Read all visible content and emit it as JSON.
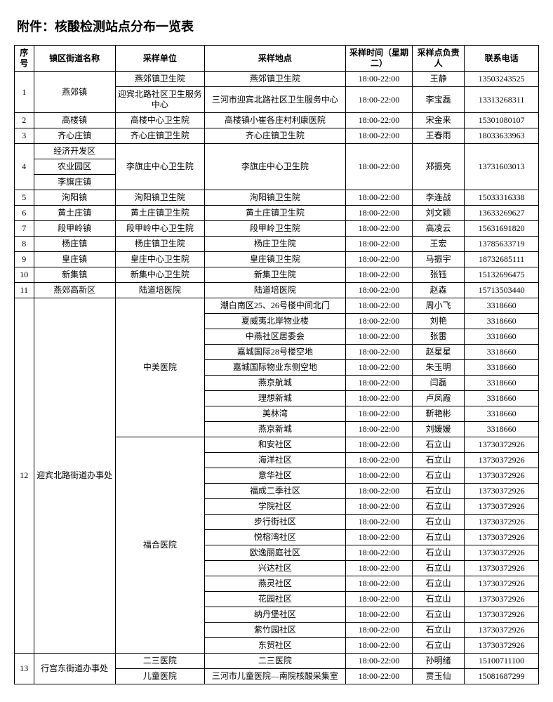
{
  "title": "附件：核酸检测站点分布一览表",
  "columns": [
    "序号",
    "镇区街道名称",
    "采样单位",
    "采样地点",
    "采样时间（星期二）",
    "采样点负责人",
    "联系电话"
  ],
  "rows": [
    {
      "seq": "1",
      "seqRow": 2,
      "town": "燕郊镇",
      "townRow": 2,
      "unit": "燕郊镇卫生院",
      "loc": "燕郊镇卫生院",
      "time": "18:00-22:00",
      "person": "王静",
      "phone": "13503243525"
    },
    {
      "unit": "迎宾北路社区卫生服务中心",
      "loc": "三河市迎宾北路社区卫生服务中心",
      "time": "18:00-22:00",
      "person": "李宝磊",
      "phone": "13313268311"
    },
    {
      "seq": "2",
      "town": "高楼镇",
      "unit": "高楼中心卫生院",
      "loc": "高楼镇小崔各庄村利康医院",
      "time": "18:00-22:00",
      "person": "宋金来",
      "phone": "15301080107"
    },
    {
      "seq": "3",
      "town": "齐心庄镇",
      "unit": "齐心庄镇卫生院",
      "loc": "齐心庄镇卫生院",
      "time": "18:00-22:00",
      "person": "王春雨",
      "phone": "18033633963"
    },
    {
      "seq": "4",
      "seqRow": 3,
      "town": "经济开发区",
      "unit": "李旗庄中心卫生院",
      "unitRow": 3,
      "loc": "李旗庄中心卫生院",
      "locRow": 3,
      "time": "18:00-22:00",
      "timeRow": 3,
      "person": "郑振亮",
      "personRow": 3,
      "phone": "13731603013",
      "phoneRow": 3
    },
    {
      "town": "农业园区"
    },
    {
      "town": "李旗庄镇"
    },
    {
      "seq": "5",
      "town": "洵阳镇",
      "unit": "洵阳镇卫生院",
      "loc": "洵阳镇卫生院",
      "time": "18:00-22:00",
      "person": "李连战",
      "phone": "15033316338"
    },
    {
      "seq": "6",
      "town": "黄土庄镇",
      "unit": "黄土庄镇卫生院",
      "loc": "黄土庄镇卫生院",
      "time": "18:00-22:00",
      "person": "刘文颖",
      "phone": "13633269627"
    },
    {
      "seq": "7",
      "town": "段甲岭镇",
      "unit": "段甲岭中心卫生院",
      "loc": "段甲岭卫生院",
      "time": "18:00-22:00",
      "person": "高凌云",
      "phone": "15631691820"
    },
    {
      "seq": "8",
      "town": "杨庄镇",
      "unit": "杨庄镇卫生院",
      "loc": "杨庄卫生院",
      "time": "18:00-22:00",
      "person": "王宏",
      "phone": "13785633719"
    },
    {
      "seq": "9",
      "town": "皇庄镇",
      "unit": "皇庄中心卫生院",
      "loc": "皇庄镇卫生院",
      "time": "18:00-22:00",
      "person": "马振宇",
      "phone": "18732685111"
    },
    {
      "seq": "10",
      "town": "新集镇",
      "unit": "新集中心卫生院",
      "loc": "新集卫生院",
      "time": "18:00-22:00",
      "person": "张钰",
      "phone": "15132696475"
    },
    {
      "seq": "11",
      "town": "燕郊高新区",
      "unit": "陆道培医院",
      "loc": "陆道培医院",
      "time": "18:00-22:00",
      "person": "赵森",
      "phone": "15713503440"
    },
    {
      "seq": "12",
      "seqRow": 23,
      "town": "迎宾北路街道办事处",
      "townRow": 23,
      "unit": "中美医院",
      "unitRow": 9,
      "loc": "潮白南区25、26号楼中间北门",
      "time": "18:00-22:00",
      "person": "周小飞",
      "phone": "3318660"
    },
    {
      "loc": "夏威夷北岸物业楼",
      "time": "18:00-22:00",
      "person": "刘艳",
      "phone": "3318660"
    },
    {
      "loc": "中燕社区居委会",
      "time": "18:00-22:00",
      "person": "张雷",
      "phone": "3318660"
    },
    {
      "loc": "嘉城国际28号楼空地",
      "time": "18:00-22:00",
      "person": "赵星星",
      "phone": "3318660"
    },
    {
      "loc": "嘉城国际物业东侧空地",
      "time": "18:00-22:00",
      "person": "朱玉明",
      "phone": "3318660"
    },
    {
      "loc": "燕京航城",
      "time": "18:00-22:00",
      "person": "闫磊",
      "phone": "3318660"
    },
    {
      "loc": "理想新城",
      "time": "18:00-22:00",
      "person": "卢凤霞",
      "phone": "3318660"
    },
    {
      "loc": "美林湾",
      "time": "18:00-22:00",
      "person": "靳艳彬",
      "phone": "3318660"
    },
    {
      "loc": "燕京新城",
      "time": "18:00-22:00",
      "person": "刘媛媛",
      "phone": "3318660"
    },
    {
      "unit": "福合医院",
      "unitRow": 14,
      "loc": "和安社区",
      "time": "18:00-22:00",
      "person": "石立山",
      "phone": "13730372926"
    },
    {
      "loc": "海洋社区",
      "time": "18:00-22:00",
      "person": "石立山",
      "phone": "13730372926"
    },
    {
      "loc": "意华社区",
      "time": "18:00-22:00",
      "person": "石立山",
      "phone": "13730372926"
    },
    {
      "loc": "福成二季社区",
      "time": "18:00-22:00",
      "person": "石立山",
      "phone": "13730372926"
    },
    {
      "loc": "学院社区",
      "time": "18:00-22:00",
      "person": "石立山",
      "phone": "13730372926"
    },
    {
      "loc": "步行街社区",
      "time": "18:00-22:00",
      "person": "石立山",
      "phone": "13730372926"
    },
    {
      "loc": "悦榕湾社区",
      "time": "18:00-22:00",
      "person": "石立山",
      "phone": "13730372926"
    },
    {
      "loc": "欧逸丽庭社区",
      "time": "18:00-22:00",
      "person": "石立山",
      "phone": "13730372926"
    },
    {
      "loc": "兴达社区",
      "time": "18:00-22:00",
      "person": "石立山",
      "phone": "13730372926"
    },
    {
      "loc": "燕灵社区",
      "time": "18:00-22:00",
      "person": "石立山",
      "phone": "13730372926"
    },
    {
      "loc": "花园社区",
      "time": "18:00-22:00",
      "person": "石立山",
      "phone": "13730372926"
    },
    {
      "loc": "纳丹堡社区",
      "time": "18:00-22:00",
      "person": "石立山",
      "phone": "13730372926"
    },
    {
      "loc": "紫竹园社区",
      "time": "18:00-22:00",
      "person": "石立山",
      "phone": "13730372926"
    },
    {
      "loc": "东贸社区",
      "time": "18:00-22:00",
      "person": "石立山",
      "phone": "13730372926"
    },
    {
      "seq": "13",
      "seqRow": 2,
      "town": "行宫东街道办事处",
      "townRow": 2,
      "unit": "二三医院",
      "loc": "二三医院",
      "time": "18:00-22:00",
      "person": "孙明绪",
      "phone": "15100711100"
    },
    {
      "unit": "儿童医院",
      "loc": "三河市儿童医院—南院核酸采集室",
      "time": "18:00-22:00",
      "person": "贾玉仙",
      "phone": "15081687299"
    }
  ]
}
